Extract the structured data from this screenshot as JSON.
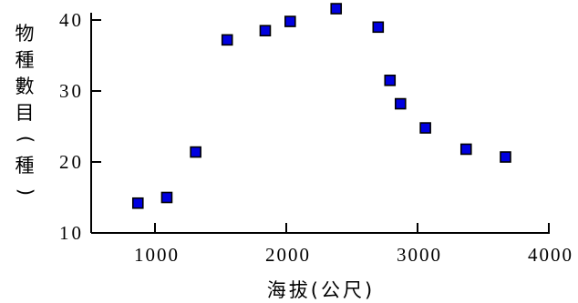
{
  "chart_data": {
    "type": "scatter",
    "title": "",
    "xlabel": "海拔(公尺)",
    "ylabel": "物種數目(種)",
    "xlim": [
      500,
      4000
    ],
    "ylim": [
      10,
      42
    ],
    "xticks": [
      1000,
      2000,
      3000,
      4000
    ],
    "xtick_labels": [
      "1000",
      "2000",
      "3000",
      "4000"
    ],
    "yticks": [
      10,
      20,
      30,
      40
    ],
    "ytick_labels": [
      "10",
      "20",
      "30",
      "40"
    ],
    "grid": false,
    "marker": "square",
    "point_color": "#0000e0",
    "points": [
      {
        "x": 870,
        "y": 14.2
      },
      {
        "x": 1090,
        "y": 15.0
      },
      {
        "x": 1310,
        "y": 21.4
      },
      {
        "x": 1550,
        "y": 37.2
      },
      {
        "x": 1840,
        "y": 38.5
      },
      {
        "x": 2030,
        "y": 39.8
      },
      {
        "x": 2380,
        "y": 41.6
      },
      {
        "x": 2700,
        "y": 39.0
      },
      {
        "x": 2790,
        "y": 31.5
      },
      {
        "x": 2870,
        "y": 28.2
      },
      {
        "x": 3060,
        "y": 24.8
      },
      {
        "x": 3370,
        "y": 21.8
      },
      {
        "x": 3670,
        "y": 20.7
      }
    ]
  }
}
